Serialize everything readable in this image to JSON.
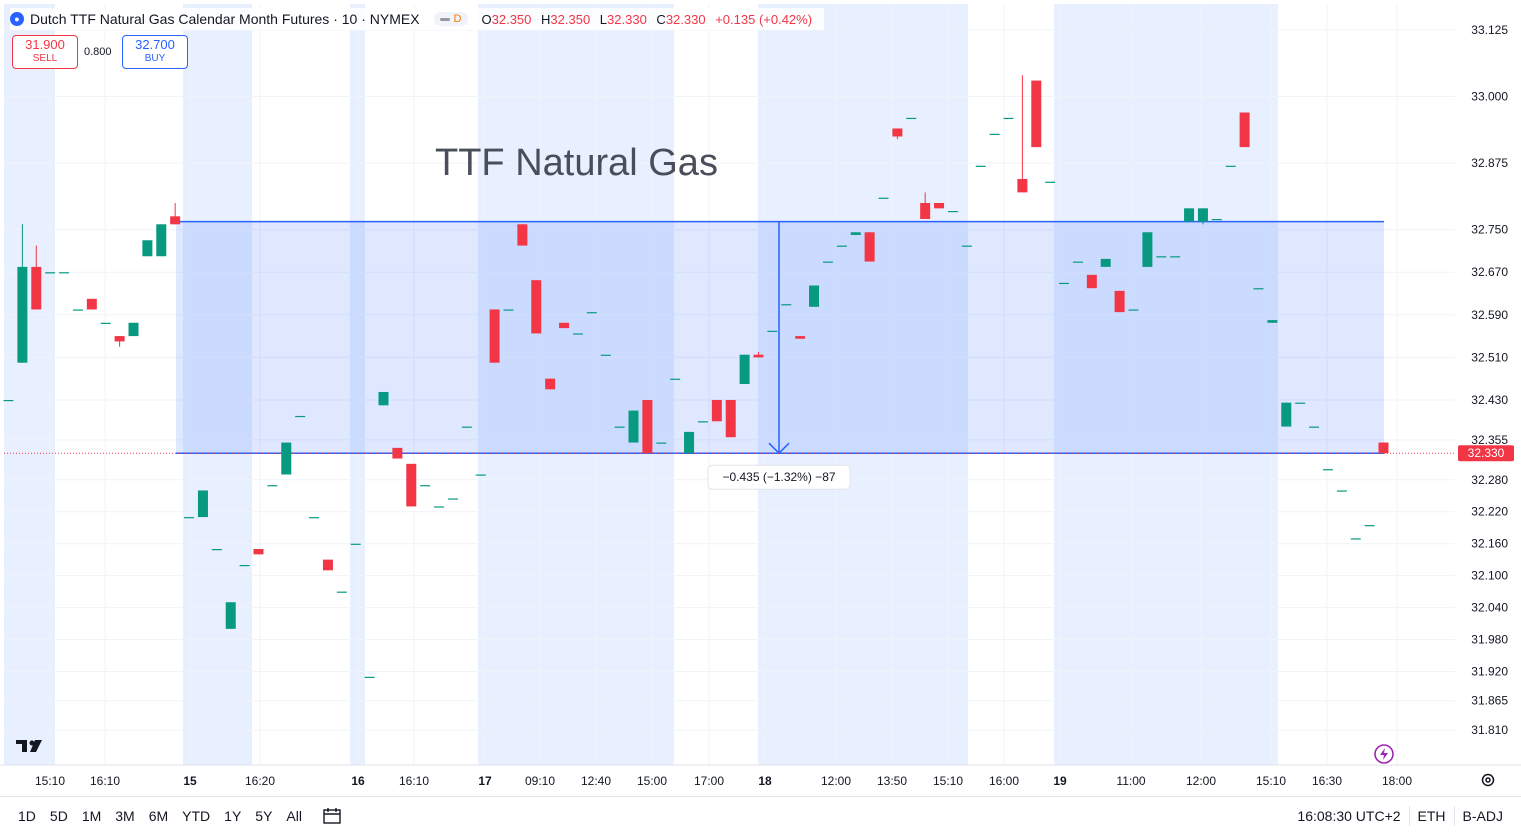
{
  "header": {
    "title": "Dutch TTF Natural Gas Calendar Month Futures · 10 · NYMEX",
    "pill_label": "D",
    "ohlc": [
      {
        "k": "O",
        "v": "32.350"
      },
      {
        "k": "H",
        "v": "32.350"
      },
      {
        "k": "L",
        "v": "32.330"
      },
      {
        "k": "C",
        "v": "32.330"
      }
    ],
    "change": "+0.135 (+0.42%)"
  },
  "trade": {
    "sell_price": "31.900",
    "sell_label": "SELL",
    "spread": "0.800",
    "buy_price": "32.700",
    "buy_label": "BUY"
  },
  "colors": {
    "up": "#089981",
    "down": "#f23645",
    "accent": "#2962ff",
    "session_band": "#e8f0ff",
    "range_fill": "rgba(41,98,255,0.15)"
  },
  "chart_data": {
    "type": "candlestick",
    "title": "",
    "annotation_text": "TTF Natural Gas",
    "measure_label": "−0.435 (−1.32%) −87",
    "last_price_label": "32.330",
    "ylim": [
      31.78,
      33.155
    ],
    "y_ticks": [
      "33.125",
      "33.000",
      "32.875",
      "32.750",
      "32.670",
      "32.590",
      "32.510",
      "32.430",
      "32.355",
      "32.280",
      "32.220",
      "32.160",
      "32.100",
      "32.040",
      "31.980",
      "31.920",
      "31.865",
      "31.810"
    ],
    "x_ticks": [
      "15:10",
      "16:10",
      "15",
      "16:20",
      "16",
      "16:10",
      "17",
      "09:10",
      "12:40",
      "15:00",
      "17:00",
      "18",
      "12:00",
      "13:50",
      "15:10",
      "16:00",
      "19",
      "11:00",
      "12:00",
      "15:10",
      "16:30",
      "18:00"
    ],
    "x_ticks_bold": [
      "15",
      "16",
      "17",
      "18",
      "19"
    ],
    "measure_range": {
      "from": 32.765,
      "to": 32.33
    },
    "candles": [
      {
        "o": 32.43,
        "h": 32.43,
        "l": 32.43,
        "c": 32.43
      },
      {
        "o": 32.5,
        "h": 32.76,
        "l": 32.5,
        "c": 32.68
      },
      {
        "o": 32.68,
        "h": 32.72,
        "l": 32.6,
        "c": 32.6
      },
      {
        "o": 32.67,
        "h": 32.67,
        "l": 32.67,
        "c": 32.67
      },
      {
        "o": 32.67,
        "h": 32.67,
        "l": 32.67,
        "c": 32.67
      },
      {
        "o": 32.6,
        "h": 32.6,
        "l": 32.6,
        "c": 32.6
      },
      {
        "o": 32.62,
        "h": 32.62,
        "l": 32.6,
        "c": 32.6
      },
      {
        "o": 32.575,
        "h": 32.575,
        "l": 32.575,
        "c": 32.575
      },
      {
        "o": 32.55,
        "h": 32.55,
        "l": 32.53,
        "c": 32.54
      },
      {
        "o": 32.55,
        "h": 32.575,
        "l": 32.55,
        "c": 32.575
      },
      {
        "o": 32.7,
        "h": 32.73,
        "l": 32.7,
        "c": 32.73
      },
      {
        "o": 32.7,
        "h": 32.76,
        "l": 32.7,
        "c": 32.76
      },
      {
        "o": 32.775,
        "h": 32.8,
        "l": 32.76,
        "c": 32.76
      },
      {
        "o": 32.21,
        "h": 32.21,
        "l": 32.21,
        "c": 32.21
      },
      {
        "o": 32.21,
        "h": 32.26,
        "l": 32.21,
        "c": 32.26
      },
      {
        "o": 32.15,
        "h": 32.15,
        "l": 32.15,
        "c": 32.15
      },
      {
        "o": 32.0,
        "h": 32.05,
        "l": 32.0,
        "c": 32.05
      },
      {
        "o": 32.12,
        "h": 32.12,
        "l": 32.12,
        "c": 32.12
      },
      {
        "o": 32.15,
        "h": 32.15,
        "l": 32.14,
        "c": 32.14
      },
      {
        "o": 32.27,
        "h": 32.27,
        "l": 32.27,
        "c": 32.27
      },
      {
        "o": 32.29,
        "h": 32.35,
        "l": 32.29,
        "c": 32.35
      },
      {
        "o": 32.4,
        "h": 32.4,
        "l": 32.4,
        "c": 32.4
      },
      {
        "o": 32.21,
        "h": 32.21,
        "l": 32.21,
        "c": 32.21
      },
      {
        "o": 32.13,
        "h": 32.13,
        "l": 32.11,
        "c": 32.11
      },
      {
        "o": 32.07,
        "h": 32.07,
        "l": 32.07,
        "c": 32.07
      },
      {
        "o": 32.16,
        "h": 32.16,
        "l": 32.16,
        "c": 32.16
      },
      {
        "o": 31.91,
        "h": 31.91,
        "l": 31.91,
        "c": 31.91
      },
      {
        "o": 32.42,
        "h": 32.445,
        "l": 32.42,
        "c": 32.445
      },
      {
        "o": 32.34,
        "h": 32.34,
        "l": 32.32,
        "c": 32.32
      },
      {
        "o": 32.31,
        "h": 32.31,
        "l": 32.23,
        "c": 32.23
      },
      {
        "o": 32.27,
        "h": 32.27,
        "l": 32.27,
        "c": 32.27
      },
      {
        "o": 32.23,
        "h": 32.23,
        "l": 32.23,
        "c": 32.23
      },
      {
        "o": 32.245,
        "h": 32.245,
        "l": 32.245,
        "c": 32.245
      },
      {
        "o": 32.38,
        "h": 32.38,
        "l": 32.38,
        "c": 32.38
      },
      {
        "o": 32.29,
        "h": 32.29,
        "l": 32.29,
        "c": 32.29
      },
      {
        "o": 32.6,
        "h": 32.6,
        "l": 32.5,
        "c": 32.5
      },
      {
        "o": 32.6,
        "h": 32.6,
        "l": 32.6,
        "c": 32.6
      },
      {
        "o": 32.76,
        "h": 32.76,
        "l": 32.72,
        "c": 32.72
      },
      {
        "o": 32.655,
        "h": 32.655,
        "l": 32.555,
        "c": 32.555
      },
      {
        "o": 32.47,
        "h": 32.47,
        "l": 32.45,
        "c": 32.45
      },
      {
        "o": 32.575,
        "h": 32.575,
        "l": 32.565,
        "c": 32.565
      },
      {
        "o": 32.555,
        "h": 32.555,
        "l": 32.555,
        "c": 32.555
      },
      {
        "o": 32.595,
        "h": 32.595,
        "l": 32.595,
        "c": 32.595
      },
      {
        "o": 32.515,
        "h": 32.515,
        "l": 32.515,
        "c": 32.515
      },
      {
        "o": 32.38,
        "h": 32.38,
        "l": 32.38,
        "c": 32.38
      },
      {
        "o": 32.35,
        "h": 32.41,
        "l": 32.35,
        "c": 32.41
      },
      {
        "o": 32.43,
        "h": 32.43,
        "l": 32.33,
        "c": 32.33
      },
      {
        "o": 32.35,
        "h": 32.35,
        "l": 32.35,
        "c": 32.35
      },
      {
        "o": 32.47,
        "h": 32.47,
        "l": 32.47,
        "c": 32.47
      },
      {
        "o": 32.33,
        "h": 32.37,
        "l": 32.33,
        "c": 32.37
      },
      {
        "o": 32.39,
        "h": 32.39,
        "l": 32.39,
        "c": 32.39
      },
      {
        "o": 32.43,
        "h": 32.43,
        "l": 32.39,
        "c": 32.39
      },
      {
        "o": 32.43,
        "h": 32.43,
        "l": 32.36,
        "c": 32.36
      },
      {
        "o": 32.46,
        "h": 32.515,
        "l": 32.46,
        "c": 32.515
      },
      {
        "o": 32.515,
        "h": 32.52,
        "l": 32.51,
        "c": 32.51
      },
      {
        "o": 32.56,
        "h": 32.56,
        "l": 32.56,
        "c": 32.56
      },
      {
        "o": 32.61,
        "h": 32.61,
        "l": 32.61,
        "c": 32.61
      },
      {
        "o": 32.55,
        "h": 32.55,
        "l": 32.545,
        "c": 32.545
      },
      {
        "o": 32.605,
        "h": 32.645,
        "l": 32.605,
        "c": 32.645
      },
      {
        "o": 32.69,
        "h": 32.69,
        "l": 32.69,
        "c": 32.69
      },
      {
        "o": 32.72,
        "h": 32.72,
        "l": 32.72,
        "c": 32.72
      },
      {
        "o": 32.74,
        "h": 32.745,
        "l": 32.74,
        "c": 32.745
      },
      {
        "o": 32.745,
        "h": 32.745,
        "l": 32.69,
        "c": 32.69
      },
      {
        "o": 32.81,
        "h": 32.81,
        "l": 32.81,
        "c": 32.81
      },
      {
        "o": 32.94,
        "h": 32.94,
        "l": 32.92,
        "c": 32.925
      },
      {
        "o": 32.96,
        "h": 32.96,
        "l": 32.96,
        "c": 32.96
      },
      {
        "o": 32.8,
        "h": 32.82,
        "l": 32.77,
        "c": 32.77
      },
      {
        "o": 32.8,
        "h": 32.8,
        "l": 32.79,
        "c": 32.79
      },
      {
        "o": 32.785,
        "h": 32.785,
        "l": 32.785,
        "c": 32.785
      },
      {
        "o": 32.72,
        "h": 32.72,
        "l": 32.72,
        "c": 32.72
      },
      {
        "o": 32.87,
        "h": 32.87,
        "l": 32.87,
        "c": 32.87
      },
      {
        "o": 32.93,
        "h": 32.93,
        "l": 32.93,
        "c": 32.93
      },
      {
        "o": 32.96,
        "h": 32.96,
        "l": 32.96,
        "c": 32.96
      },
      {
        "o": 32.845,
        "h": 33.04,
        "l": 32.82,
        "c": 32.82
      },
      {
        "o": 33.03,
        "h": 33.03,
        "l": 32.905,
        "c": 32.905
      },
      {
        "o": 32.84,
        "h": 32.84,
        "l": 32.84,
        "c": 32.84
      },
      {
        "o": 32.65,
        "h": 32.65,
        "l": 32.65,
        "c": 32.65
      },
      {
        "o": 32.69,
        "h": 32.69,
        "l": 32.69,
        "c": 32.69
      },
      {
        "o": 32.665,
        "h": 32.665,
        "l": 32.64,
        "c": 32.64
      },
      {
        "o": 32.68,
        "h": 32.695,
        "l": 32.68,
        "c": 32.695
      },
      {
        "o": 32.635,
        "h": 32.635,
        "l": 32.595,
        "c": 32.595
      },
      {
        "o": 32.6,
        "h": 32.6,
        "l": 32.6,
        "c": 32.6
      },
      {
        "o": 32.68,
        "h": 32.745,
        "l": 32.68,
        "c": 32.745
      },
      {
        "o": 32.7,
        "h": 32.7,
        "l": 32.7,
        "c": 32.7
      },
      {
        "o": 32.7,
        "h": 32.7,
        "l": 32.7,
        "c": 32.7
      },
      {
        "o": 32.765,
        "h": 32.79,
        "l": 32.765,
        "c": 32.79
      },
      {
        "o": 32.765,
        "h": 32.79,
        "l": 32.76,
        "c": 32.79
      },
      {
        "o": 32.77,
        "h": 32.77,
        "l": 32.77,
        "c": 32.77
      },
      {
        "o": 32.87,
        "h": 32.87,
        "l": 32.87,
        "c": 32.87
      },
      {
        "o": 32.97,
        "h": 32.97,
        "l": 32.905,
        "c": 32.905
      },
      {
        "o": 32.64,
        "h": 32.64,
        "l": 32.64,
        "c": 32.64
      },
      {
        "o": 32.575,
        "h": 32.58,
        "l": 32.575,
        "c": 32.58
      },
      {
        "o": 32.38,
        "h": 32.425,
        "l": 32.38,
        "c": 32.425
      },
      {
        "o": 32.425,
        "h": 32.425,
        "l": 32.425,
        "c": 32.425
      },
      {
        "o": 32.38,
        "h": 32.38,
        "l": 32.38,
        "c": 32.38
      },
      {
        "o": 32.3,
        "h": 32.3,
        "l": 32.3,
        "c": 32.3
      },
      {
        "o": 32.26,
        "h": 32.26,
        "l": 32.26,
        "c": 32.26
      },
      {
        "o": 32.17,
        "h": 32.17,
        "l": 32.17,
        "c": 32.17
      },
      {
        "o": 32.195,
        "h": 32.195,
        "l": 32.195,
        "c": 32.195
      },
      {
        "o": 32.35,
        "h": 32.35,
        "l": 32.33,
        "c": 32.33
      }
    ]
  },
  "bottom": {
    "ranges": [
      "1D",
      "5D",
      "1M",
      "3M",
      "6M",
      "YTD",
      "1Y",
      "5Y",
      "All"
    ],
    "clock": "16:08:30 UTC+2",
    "session": "ETH",
    "adjust": "B-ADJ"
  }
}
